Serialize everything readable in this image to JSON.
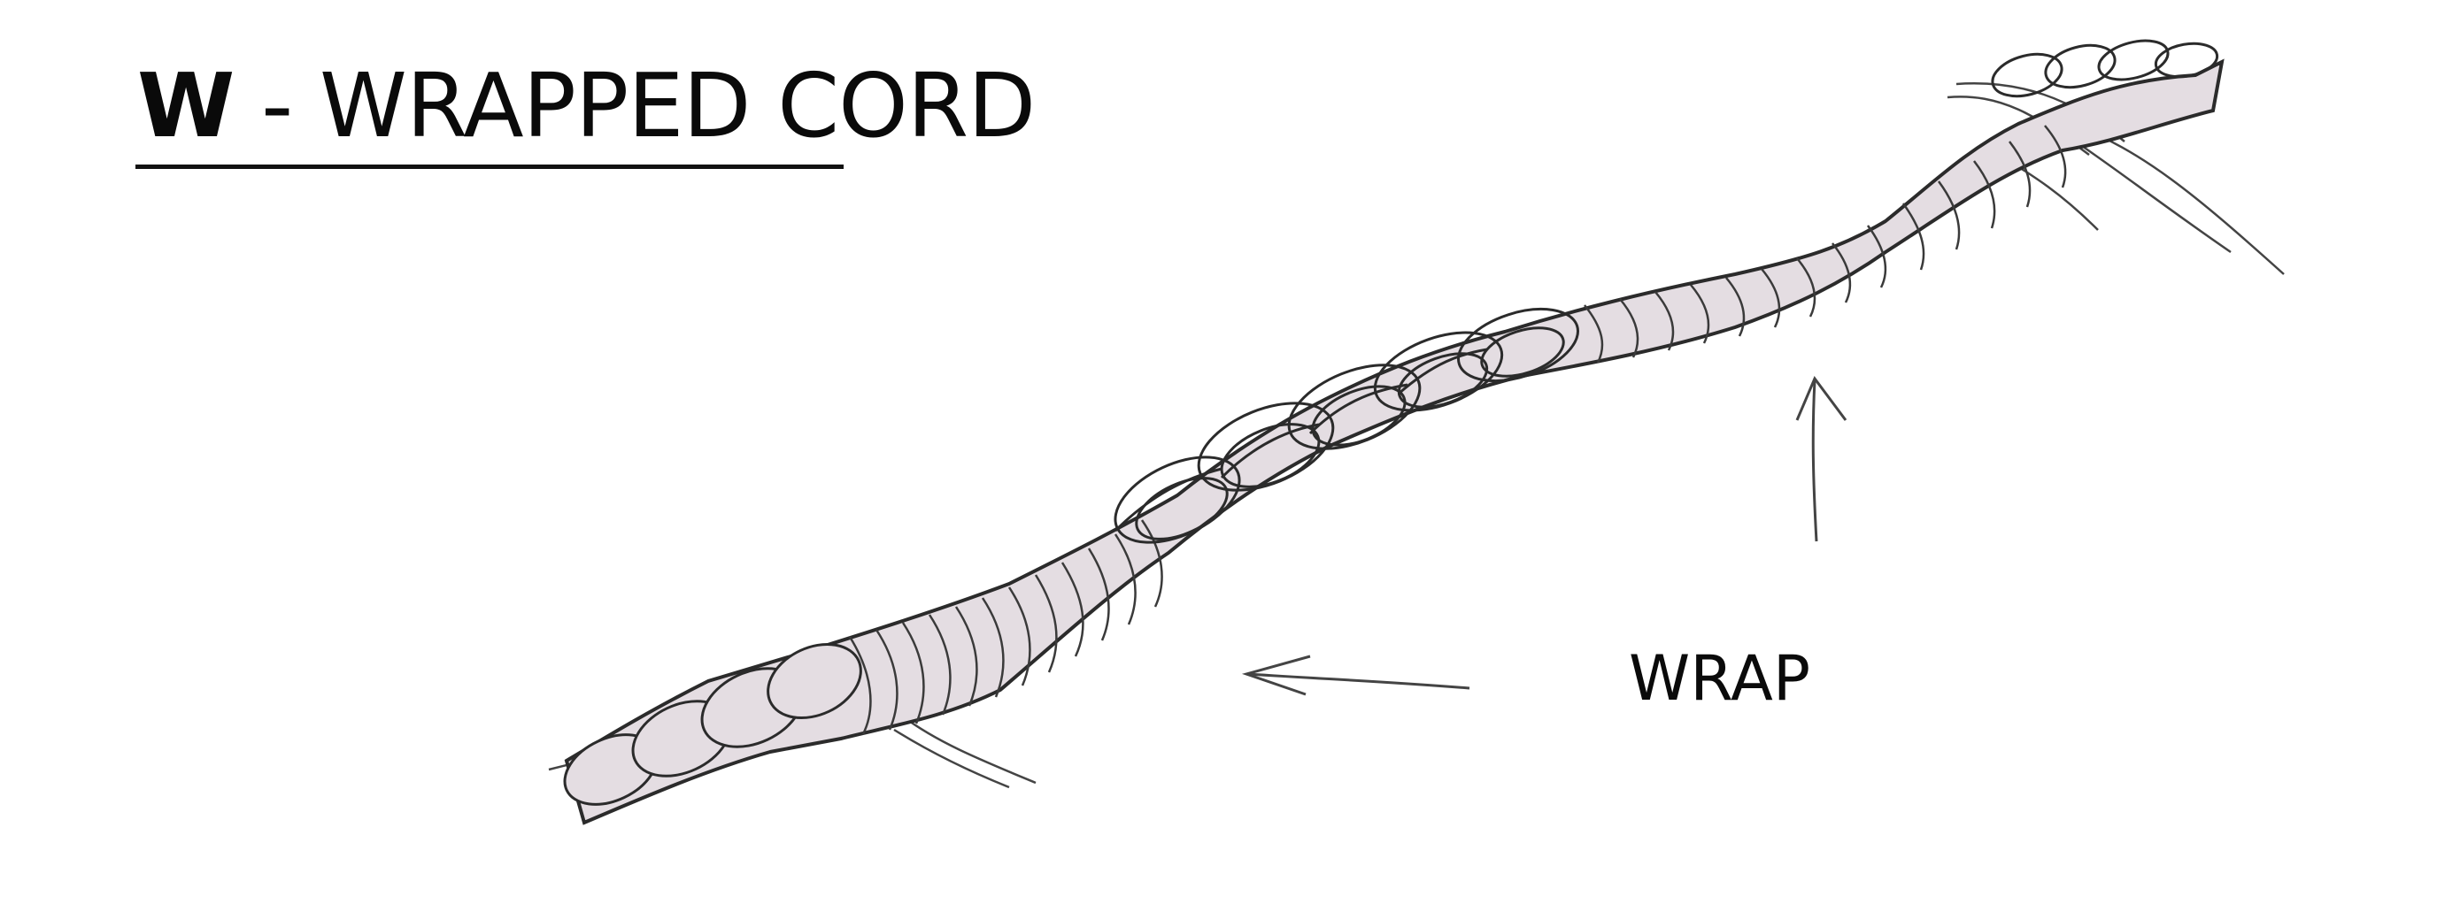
{
  "title": {
    "letter": "W",
    "rest": " - WRAPPED CORD"
  },
  "annotation": {
    "label": "WRAP"
  },
  "colors": {
    "cord_fill": "#e4dde2",
    "ink": "#2b2b2b",
    "background": "#ffffff"
  }
}
